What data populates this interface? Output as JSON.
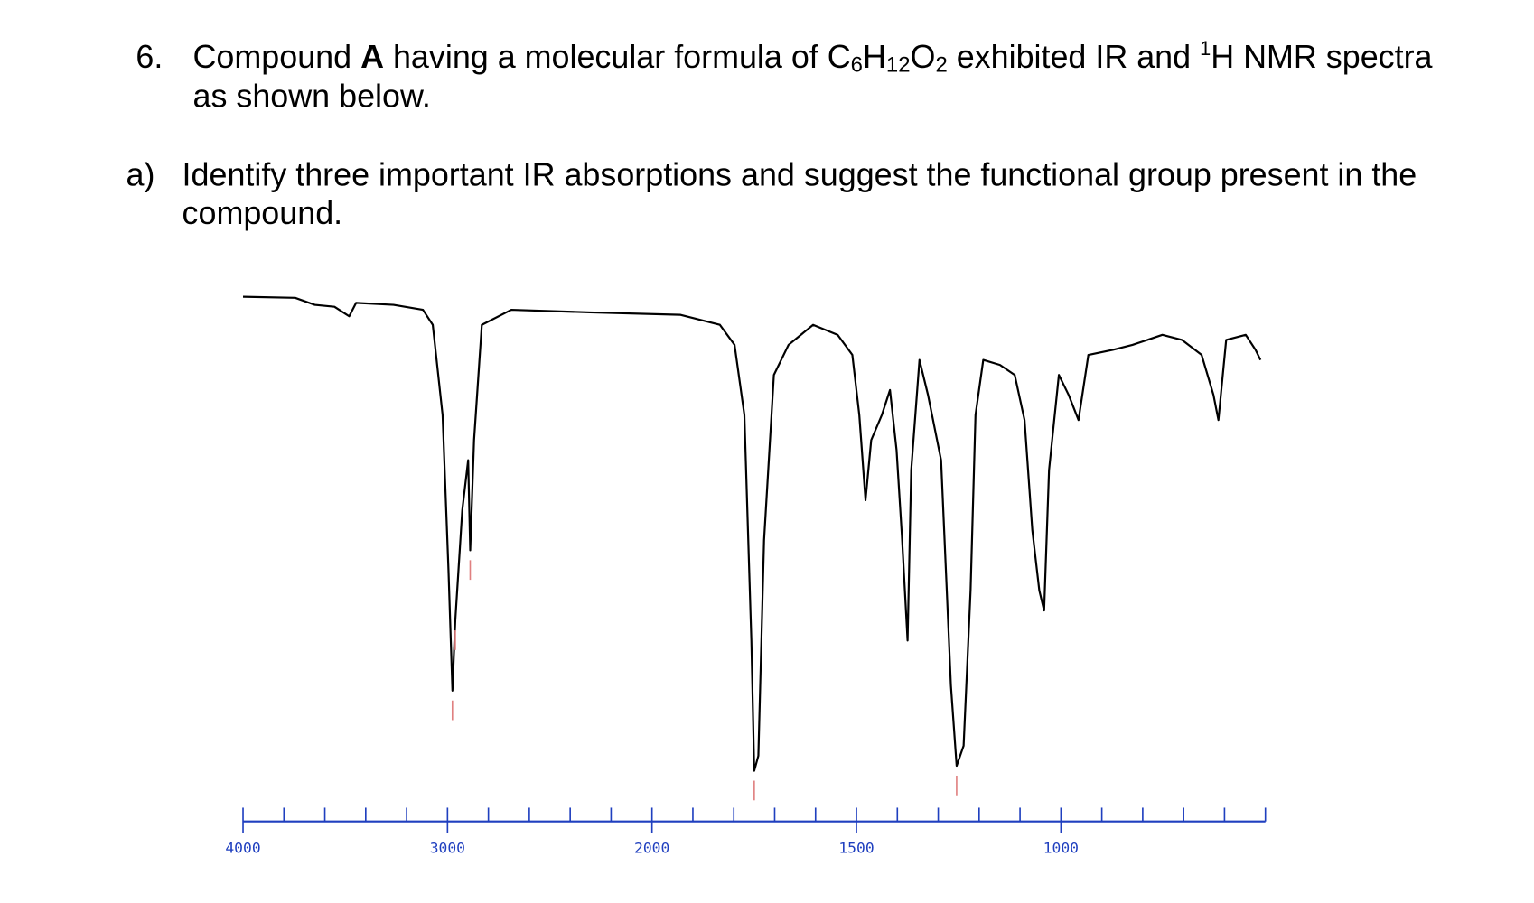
{
  "question": {
    "number": "6.",
    "line1": [
      "Compound ",
      "A",
      " having a molecular formula of ",
      "C",
      "6",
      "H",
      "12",
      "O",
      "2",
      " exhibited IR and ",
      "1",
      "H NMR spectra"
    ],
    "line2": "as shown below."
  },
  "part_a": {
    "label": "a)",
    "line1": "Identify three important IR absorptions and suggest the functional group present in the",
    "line2": "compound."
  },
  "chart_data": {
    "type": "line",
    "x": [
      4000,
      3745,
      3649,
      3553,
      3481,
      3447,
      3264,
      3120,
      3072,
      3024,
      2995,
      2976,
      2962,
      2928,
      2899,
      2889,
      2870,
      2832,
      2688,
      2303,
      1930,
      1834,
      1798,
      1774,
      1757,
      1750,
      1740,
      1726,
      1702,
      1666,
      1606,
      1546,
      1510,
      1493,
      1478,
      1464,
      1438,
      1418,
      1402,
      1389,
      1375,
      1366,
      1346,
      1325,
      1293,
      1269,
      1255,
      1238,
      1221,
      1209,
      1190,
      1149,
      1113,
      1089,
      1070,
      1053,
      1041,
      1029,
      1005,
      981,
      957,
      933,
      873,
      825,
      752,
      704,
      656,
      627,
      615,
      596,
      548,
      524,
      512
    ],
    "series": [
      {
        "color": "#000000",
        "values": [
          99.6,
          99.4,
          98,
          97.6,
          95.7,
          98.4,
          98,
          97,
          94,
          76,
          45,
          21,
          35,
          57,
          67,
          49,
          71,
          94,
          97,
          96.5,
          96,
          94,
          90,
          76,
          31,
          5,
          8,
          51,
          84,
          90,
          94,
          92,
          88,
          76,
          59,
          71,
          76,
          81,
          69,
          52,
          31,
          65,
          87,
          80,
          67,
          22,
          6,
          10,
          41,
          76,
          87,
          86,
          84,
          75,
          53,
          41,
          37,
          65,
          84,
          80,
          75,
          88,
          89,
          90,
          92,
          91,
          88,
          80,
          75,
          91,
          92,
          89,
          87
        ]
      }
    ],
    "peak_markers": {
      "color": "#e08080",
      "x": [
        2976,
        2962,
        2889,
        1750,
        1255
      ]
    },
    "xlim": [
      4000,
      500
    ],
    "ylim": [
      0,
      100
    ],
    "xticks": [
      4000,
      3000,
      2000,
      1500,
      1000
    ],
    "xminor_ticks": [
      3800,
      3600,
      3400,
      3200,
      2800,
      2600,
      2400,
      2200,
      1900,
      1800,
      1700,
      1600,
      1400,
      1300,
      1200,
      1100,
      900,
      800,
      700,
      600,
      500
    ],
    "axis_color": "#1f3fbf"
  }
}
